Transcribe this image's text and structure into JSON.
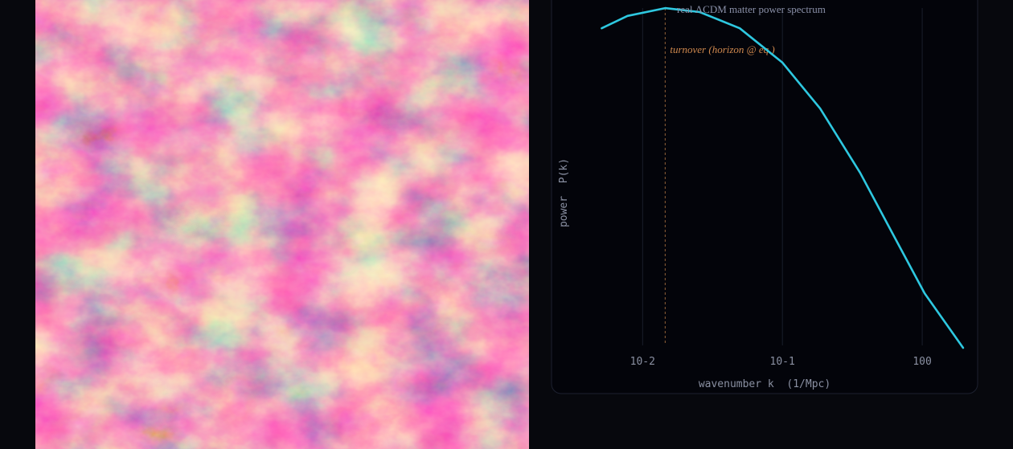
{
  "chart_data": {
    "type": "line",
    "x": [
      0.0051,
      0.0078,
      0.0145,
      0.0256,
      0.0495,
      0.1,
      0.186,
      0.36,
      0.61,
      1.04,
      1.96
    ],
    "series": [
      {
        "name": "real ΛCDM matter power spectrum",
        "color": "#2ec8e0",
        "values": [
          92,
          95.5,
          97.7,
          96.6,
          92,
          82.3,
          69.3,
          51.1,
          34.1,
          17,
          1.6
        ]
      }
    ],
    "xlabel": "wavenumber k  (1/Mpc)",
    "ylabel": "power  P(k)",
    "log_x": true,
    "xlim": [
      0.0035,
      2.3
    ],
    "ylim": [
      0,
      100
    ],
    "xticks": [
      {
        "value": 0.01,
        "label": "10-2"
      },
      {
        "value": 0.1,
        "label": "10-1"
      },
      {
        "value": 1,
        "label": "100"
      }
    ],
    "grid": true,
    "annotations": [
      {
        "text": "turnover (horizon @ eq.)",
        "x": 0.0145,
        "color": "#d0894e"
      }
    ]
  }
}
